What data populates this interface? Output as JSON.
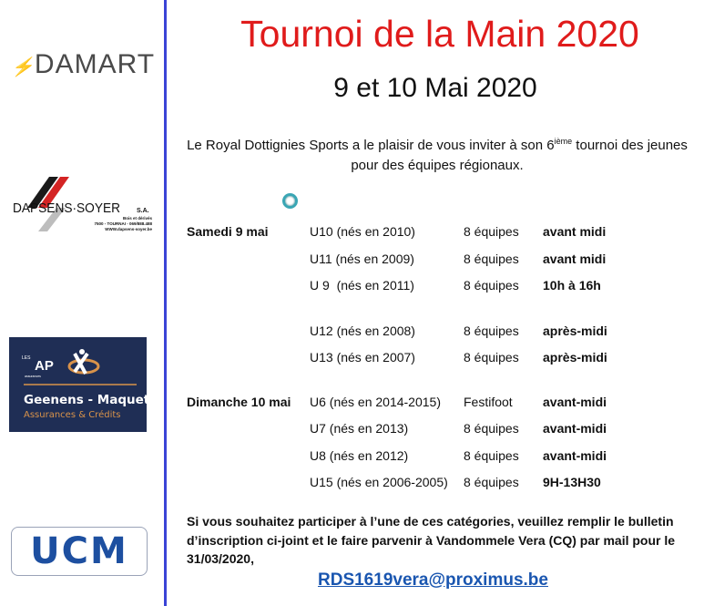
{
  "logos": {
    "damart": "DAMART",
    "dapsens": {
      "name": "DAPSENS·SOYER",
      "suffix": "S.A.",
      "line1": "Bois et dérivés",
      "line2": "7500 - TOURNAI - 069/888.488",
      "line3": "WWW.dapsens-soyer.be"
    },
    "ap": {
      "les": "LES",
      "brand": "AP",
      "sub": "assurances",
      "name": "Geenens - Maquet",
      "tagline": "Assurances & Crédits"
    },
    "ucm": "UCM"
  },
  "header": {
    "title": "Tournoi de la Main 2020",
    "dates": "9 et 10 Mai 2020"
  },
  "intro": {
    "before_sup": "Le Royal Dottignies Sports a le plaisir de vous inviter à son 6",
    "sup": "ième",
    "after_sup": " tournoi des jeunes pour des équipes régionaux."
  },
  "schedule": [
    {
      "day": "Samedi 9 mai",
      "category": "U10 (nés en 2010)",
      "teams": "8 équipes",
      "time": "avant midi"
    },
    {
      "day": "",
      "category": "U11 (nés en 2009)",
      "teams": "8 équipes",
      "time": "avant midi"
    },
    {
      "day": "",
      "category": "U 9  (nés en 2011)",
      "teams": "8 équipes",
      "time": "10h à 16h"
    },
    {
      "day": "",
      "category": "U12 (nés en 2008)",
      "teams": "8 équipes",
      "time": "après-midi"
    },
    {
      "day": "",
      "category": "U13 (nés en 2007)",
      "teams": "8 équipes",
      "time": "après-midi"
    },
    {
      "day": "Dimanche 10 mai",
      "category": "U6 (nés en 2014-2015)",
      "teams": "Festifoot",
      "time": "avant-midi"
    },
    {
      "day": "",
      "category": "U7 (nés en 2013)",
      "teams": "8 équipes",
      "time": "avant-midi"
    },
    {
      "day": "",
      "category": "U8 (nés en 2012)",
      "teams": "8 équipes",
      "time": "avant-midi"
    },
    {
      "day": "",
      "category": "U15 (nés en 2006-2005)",
      "teams": "8 équipes",
      "time": "9H-13H30"
    }
  ],
  "footer": {
    "text": "Si vous souhaitez participer à l’une de ces catégories, veuillez remplir le bulletin d’inscription ci-joint et le faire parvenir à Vandommele Vera (CQ) par mail pour le 31/03/2020,",
    "email": "RDS1619vera@proximus.be"
  },
  "colors": {
    "title": "#e01b1b",
    "divider": "#3a44d6",
    "link": "#1a56b0",
    "ap_bg": "#1f2e55",
    "ap_accent": "#d9934a",
    "ucm": "#1d4fa0"
  }
}
